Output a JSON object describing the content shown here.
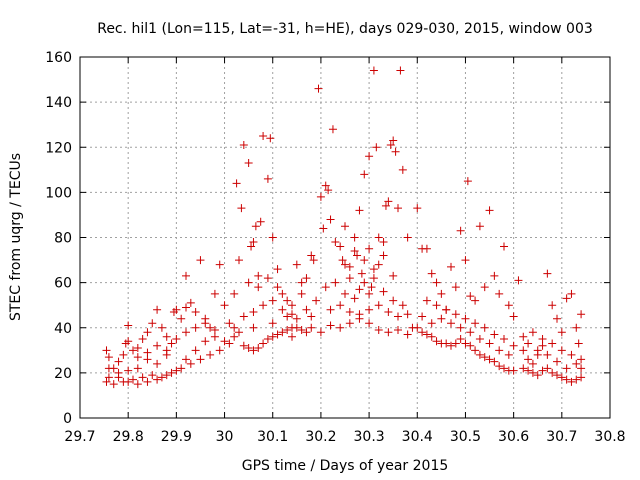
{
  "chart_data": {
    "type": "scatter",
    "title": "Rec. hil1 (Lon=115, Lat=-31, h=HE), days 029-030, 2015, window 003",
    "xlabel": "GPS time / Days of year 2015",
    "ylabel": "STEC from uqrg / TECUs",
    "xlim": [
      29.7,
      30.8
    ],
    "ylim": [
      0,
      160
    ],
    "xticks": [
      29.7,
      29.8,
      29.9,
      30.0,
      30.1,
      30.2,
      30.3,
      30.4,
      30.5,
      30.6,
      30.7,
      30.8
    ],
    "xtick_labels": [
      "29.7",
      "29.8",
      "29.9",
      "30",
      "30.1",
      "30.2",
      "30.3",
      "30.4",
      "30.5",
      "30.6",
      "30.7",
      "30.8"
    ],
    "yticks": [
      0,
      20,
      40,
      60,
      80,
      100,
      120,
      140,
      160
    ],
    "ytick_labels": [
      "0",
      "20",
      "40",
      "60",
      "80",
      "100",
      "120",
      "140",
      "160"
    ],
    "grid": true,
    "marker": "+",
    "color": "#cc0000",
    "series": [
      {
        "name": "STEC",
        "points": [
          [
            29.755,
            30
          ],
          [
            29.76,
            27
          ],
          [
            29.77,
            22
          ],
          [
            29.78,
            25
          ],
          [
            29.79,
            28
          ],
          [
            29.795,
            33
          ],
          [
            29.8,
            41
          ],
          [
            29.81,
            30
          ],
          [
            29.82,
            27
          ],
          [
            29.83,
            35
          ],
          [
            29.84,
            38
          ],
          [
            29.85,
            42
          ],
          [
            29.86,
            48
          ],
          [
            29.87,
            40
          ],
          [
            29.88,
            36
          ],
          [
            29.89,
            33
          ],
          [
            29.895,
            47
          ],
          [
            29.9,
            48
          ],
          [
            29.91,
            44
          ],
          [
            29.92,
            49
          ],
          [
            29.93,
            51
          ],
          [
            29.94,
            47
          ],
          [
            29.95,
            70
          ],
          [
            29.96,
            44
          ],
          [
            29.97,
            40
          ],
          [
            29.98,
            55
          ],
          [
            29.99,
            68
          ],
          [
            29.92,
            63
          ],
          [
            29.88,
            28
          ],
          [
            29.86,
            24
          ],
          [
            29.84,
            26
          ],
          [
            29.82,
            22
          ],
          [
            29.8,
            21
          ],
          [
            29.78,
            20
          ],
          [
            29.76,
            18
          ],
          [
            29.755,
            16
          ],
          [
            29.77,
            15
          ],
          [
            29.79,
            16
          ],
          [
            29.81,
            17
          ],
          [
            29.83,
            18
          ],
          [
            29.85,
            19
          ],
          [
            29.87,
            18
          ],
          [
            29.89,
            20
          ],
          [
            29.91,
            22
          ],
          [
            29.93,
            24
          ],
          [
            29.95,
            26
          ],
          [
            29.97,
            28
          ],
          [
            29.99,
            30
          ],
          [
            29.76,
            22
          ],
          [
            29.78,
            18
          ],
          [
            29.8,
            16
          ],
          [
            29.82,
            15
          ],
          [
            29.84,
            16
          ],
          [
            29.86,
            17
          ],
          [
            29.88,
            19
          ],
          [
            29.9,
            21
          ],
          [
            29.92,
            26
          ],
          [
            29.94,
            30
          ],
          [
            29.96,
            34
          ],
          [
            29.98,
            36
          ],
          [
            29.8,
            34
          ],
          [
            29.82,
            31
          ],
          [
            29.84,
            29
          ],
          [
            29.86,
            32
          ],
          [
            29.88,
            30
          ],
          [
            29.9,
            35
          ],
          [
            29.92,
            38
          ],
          [
            29.94,
            40
          ],
          [
            29.96,
            42
          ],
          [
            29.98,
            39
          ],
          [
            30.0,
            50
          ],
          [
            30.01,
            42
          ],
          [
            30.02,
            55
          ],
          [
            30.025,
            104
          ],
          [
            30.03,
            70
          ],
          [
            30.035,
            93
          ],
          [
            30.04,
            121
          ],
          [
            30.05,
            113
          ],
          [
            30.055,
            76
          ],
          [
            30.06,
            78
          ],
          [
            30.065,
            85
          ],
          [
            30.07,
            63
          ],
          [
            30.075,
            87
          ],
          [
            30.08,
            125
          ],
          [
            30.09,
            106
          ],
          [
            30.095,
            124
          ],
          [
            30.1,
            80
          ],
          [
            30.11,
            66
          ],
          [
            30.12,
            55
          ],
          [
            30.13,
            52
          ],
          [
            30.14,
            50
          ],
          [
            30.15,
            68
          ],
          [
            30.16,
            60
          ],
          [
            30.17,
            62
          ],
          [
            30.18,
            72
          ],
          [
            30.185,
            70
          ],
          [
            30.0,
            34
          ],
          [
            30.01,
            33
          ],
          [
            30.02,
            36
          ],
          [
            30.03,
            38
          ],
          [
            30.04,
            32
          ],
          [
            30.05,
            31
          ],
          [
            30.06,
            30
          ],
          [
            30.07,
            31
          ],
          [
            30.08,
            33
          ],
          [
            30.09,
            35
          ],
          [
            30.1,
            36
          ],
          [
            30.11,
            37
          ],
          [
            30.12,
            38
          ],
          [
            30.13,
            39
          ],
          [
            30.14,
            40
          ],
          [
            30.15,
            40
          ],
          [
            30.16,
            39
          ],
          [
            30.17,
            38
          ],
          [
            30.18,
            40
          ],
          [
            30.04,
            45
          ],
          [
            30.06,
            47
          ],
          [
            30.08,
            50
          ],
          [
            30.1,
            52
          ],
          [
            30.12,
            48
          ],
          [
            30.14,
            46
          ],
          [
            30.16,
            55
          ],
          [
            30.05,
            60
          ],
          [
            30.07,
            58
          ],
          [
            30.09,
            62
          ],
          [
            30.11,
            58
          ],
          [
            30.13,
            45
          ],
          [
            30.15,
            44
          ],
          [
            30.17,
            48
          ],
          [
            30.02,
            40
          ],
          [
            30.06,
            40
          ],
          [
            30.1,
            42
          ],
          [
            30.14,
            36
          ],
          [
            30.18,
            45
          ],
          [
            30.19,
            52
          ],
          [
            30.195,
            146
          ],
          [
            30.2,
            98
          ],
          [
            30.205,
            84
          ],
          [
            30.21,
            103
          ],
          [
            30.215,
            101
          ],
          [
            30.22,
            88
          ],
          [
            30.225,
            128
          ],
          [
            30.23,
            78
          ],
          [
            30.24,
            76
          ],
          [
            30.245,
            70
          ],
          [
            30.25,
            68
          ],
          [
            30.26,
            67
          ],
          [
            30.27,
            74
          ],
          [
            30.275,
            72
          ],
          [
            30.28,
            92
          ],
          [
            30.285,
            64
          ],
          [
            30.29,
            108
          ],
          [
            30.3,
            116
          ],
          [
            30.305,
            58
          ],
          [
            30.31,
            154
          ],
          [
            30.315,
            120
          ],
          [
            30.32,
            80
          ],
          [
            30.33,
            78
          ],
          [
            30.335,
            94
          ],
          [
            30.34,
            96
          ],
          [
            30.345,
            121
          ],
          [
            30.35,
            123
          ],
          [
            30.355,
            118
          ],
          [
            30.36,
            93
          ],
          [
            30.365,
            154
          ],
          [
            30.37,
            110
          ],
          [
            30.38,
            80
          ],
          [
            30.39,
            40
          ],
          [
            30.2,
            38
          ],
          [
            30.22,
            41
          ],
          [
            30.24,
            40
          ],
          [
            30.26,
            42
          ],
          [
            30.28,
            44
          ],
          [
            30.3,
            42
          ],
          [
            30.32,
            39
          ],
          [
            30.34,
            38
          ],
          [
            30.36,
            39
          ],
          [
            30.38,
            37
          ],
          [
            30.21,
            58
          ],
          [
            30.23,
            60
          ],
          [
            30.25,
            55
          ],
          [
            30.27,
            53
          ],
          [
            30.29,
            60
          ],
          [
            30.31,
            62
          ],
          [
            30.33,
            56
          ],
          [
            30.35,
            52
          ],
          [
            30.37,
            50
          ],
          [
            30.22,
            48
          ],
          [
            30.24,
            50
          ],
          [
            30.26,
            47
          ],
          [
            30.28,
            46
          ],
          [
            30.3,
            48
          ],
          [
            30.32,
            50
          ],
          [
            30.34,
            47
          ],
          [
            30.36,
            45
          ],
          [
            30.38,
            46
          ],
          [
            30.25,
            85
          ],
          [
            30.27,
            80
          ],
          [
            30.29,
            70
          ],
          [
            30.31,
            66
          ],
          [
            30.33,
            72
          ],
          [
            30.35,
            63
          ],
          [
            30.3,
            75
          ],
          [
            30.32,
            68
          ],
          [
            30.26,
            62
          ],
          [
            30.28,
            57
          ],
          [
            30.3,
            55
          ],
          [
            30.4,
            93
          ],
          [
            30.41,
            75
          ],
          [
            30.42,
            75
          ],
          [
            30.43,
            64
          ],
          [
            30.44,
            60
          ],
          [
            30.45,
            55
          ],
          [
            30.46,
            48
          ],
          [
            30.47,
            67
          ],
          [
            30.48,
            58
          ],
          [
            30.49,
            83
          ],
          [
            30.5,
            70
          ],
          [
            30.505,
            105
          ],
          [
            30.51,
            54
          ],
          [
            30.52,
            52
          ],
          [
            30.53,
            85
          ],
          [
            30.54,
            58
          ],
          [
            30.55,
            92
          ],
          [
            30.56,
            63
          ],
          [
            30.57,
            55
          ],
          [
            30.58,
            76
          ],
          [
            30.59,
            50
          ],
          [
            30.6,
            45
          ],
          [
            30.61,
            61
          ],
          [
            30.4,
            40
          ],
          [
            30.41,
            38
          ],
          [
            30.42,
            37
          ],
          [
            30.43,
            36
          ],
          [
            30.44,
            34
          ],
          [
            30.45,
            33
          ],
          [
            30.46,
            33
          ],
          [
            30.47,
            32
          ],
          [
            30.48,
            33
          ],
          [
            30.49,
            35
          ],
          [
            30.5,
            33
          ],
          [
            30.51,
            32
          ],
          [
            30.52,
            30
          ],
          [
            30.53,
            28
          ],
          [
            30.54,
            27
          ],
          [
            30.55,
            26
          ],
          [
            30.56,
            25
          ],
          [
            30.57,
            23
          ],
          [
            30.58,
            22
          ],
          [
            30.59,
            21
          ],
          [
            30.6,
            21
          ],
          [
            30.41,
            45
          ],
          [
            30.43,
            42
          ],
          [
            30.45,
            44
          ],
          [
            30.47,
            42
          ],
          [
            30.49,
            40
          ],
          [
            30.51,
            38
          ],
          [
            30.53,
            35
          ],
          [
            30.55,
            33
          ],
          [
            30.57,
            30
          ],
          [
            30.59,
            28
          ],
          [
            30.42,
            52
          ],
          [
            30.44,
            50
          ],
          [
            30.46,
            48
          ],
          [
            30.48,
            46
          ],
          [
            30.5,
            44
          ],
          [
            30.52,
            42
          ],
          [
            30.54,
            40
          ],
          [
            30.56,
            37
          ],
          [
            30.58,
            35
          ],
          [
            30.6,
            32
          ],
          [
            30.62,
            30
          ],
          [
            30.63,
            26
          ],
          [
            30.64,
            24
          ],
          [
            30.65,
            28
          ],
          [
            30.66,
            32
          ],
          [
            30.67,
            64
          ],
          [
            30.68,
            50
          ],
          [
            30.69,
            44
          ],
          [
            30.7,
            38
          ],
          [
            30.71,
            53
          ],
          [
            30.72,
            55
          ],
          [
            30.73,
            40
          ],
          [
            30.735,
            33
          ],
          [
            30.74,
            46
          ],
          [
            30.62,
            22
          ],
          [
            30.63,
            21
          ],
          [
            30.64,
            20
          ],
          [
            30.65,
            19
          ],
          [
            30.66,
            21
          ],
          [
            30.67,
            22
          ],
          [
            30.68,
            20
          ],
          [
            30.69,
            19
          ],
          [
            30.7,
            18
          ],
          [
            30.71,
            17
          ],
          [
            30.72,
            16
          ],
          [
            30.73,
            17
          ],
          [
            30.74,
            18
          ],
          [
            30.62,
            36
          ],
          [
            30.64,
            38
          ],
          [
            30.66,
            35
          ],
          [
            30.68,
            33
          ],
          [
            30.7,
            30
          ],
          [
            30.72,
            28
          ],
          [
            30.74,
            26
          ],
          [
            30.63,
            33
          ],
          [
            30.65,
            30
          ],
          [
            30.67,
            28
          ],
          [
            30.69,
            25
          ],
          [
            30.71,
            22
          ],
          [
            30.73,
            24
          ],
          [
            30.74,
            22
          ]
        ]
      }
    ]
  }
}
